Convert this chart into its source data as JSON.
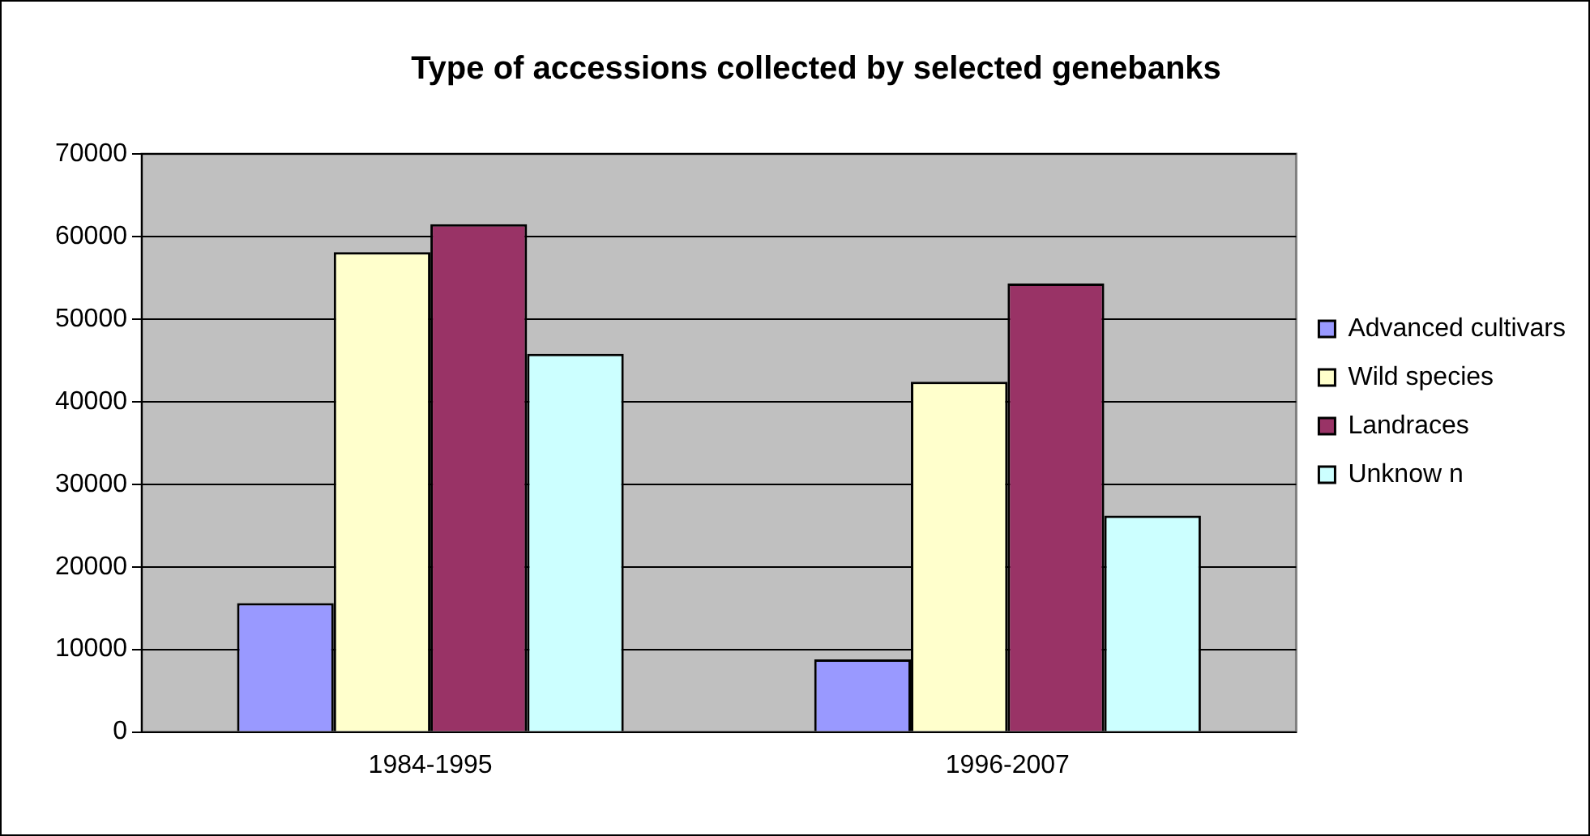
{
  "chart_data": {
    "type": "bar",
    "title": "Type of accessions collected by selected genebanks",
    "categories": [
      "1984-1995",
      "1996-2007"
    ],
    "series": [
      {
        "name": "Advanced cultivars",
        "color": "#9999ff",
        "values": [
          15600,
          8800
        ]
      },
      {
        "name": "Wild species",
        "color": "#ffffcc",
        "values": [
          58100,
          42400
        ]
      },
      {
        "name": "Landraces",
        "color": "#993366",
        "values": [
          61500,
          54300
        ]
      },
      {
        "name": "Unknow n",
        "color": "#ccffff",
        "values": [
          45800,
          26200
        ]
      }
    ],
    "ylim": [
      0,
      70000
    ],
    "yticks": [
      0,
      10000,
      20000,
      30000,
      40000,
      50000,
      60000,
      70000
    ],
    "grid": "y",
    "legend": "right"
  }
}
